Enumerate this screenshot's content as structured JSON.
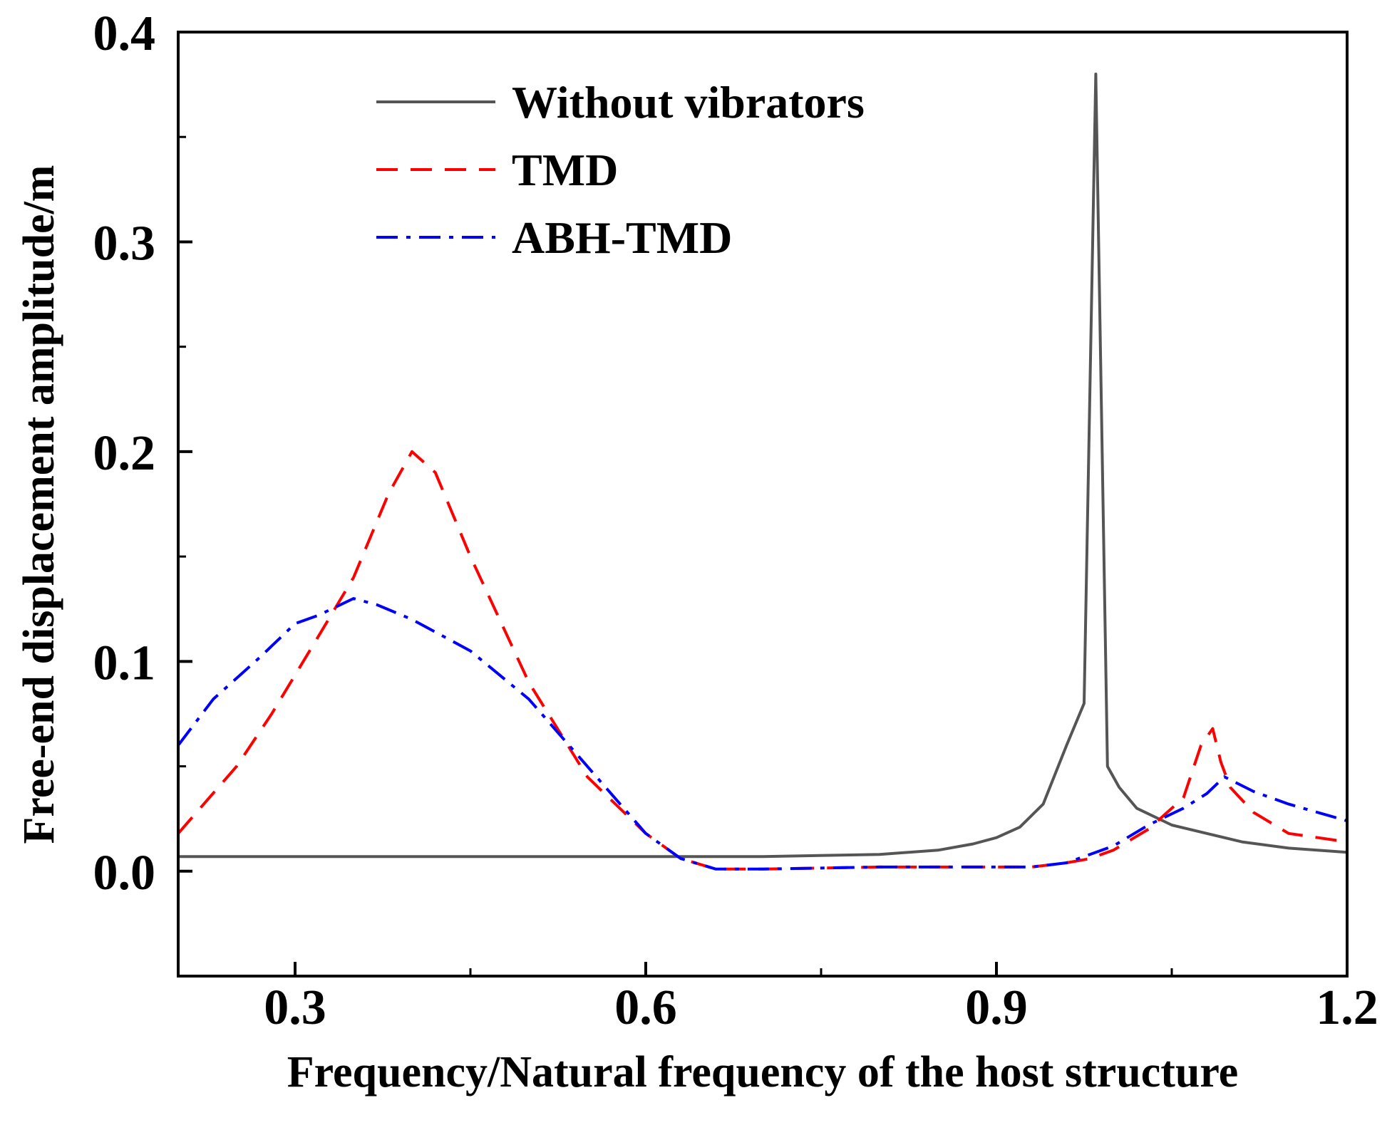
{
  "chart_data": {
    "type": "line",
    "title": "",
    "xlabel": "Frequency/Natural frequency of the host structure",
    "ylabel": "Free-end displacement amplitude/m",
    "xlim": [
      0.2,
      1.2
    ],
    "ylim": [
      -0.05,
      0.4
    ],
    "xticks": [
      0.3,
      0.6,
      0.9,
      1.2
    ],
    "xtick_labels": [
      "0.3",
      "0.6",
      "0.9",
      "1.2"
    ],
    "xminor": [
      0.45,
      0.75,
      1.05
    ],
    "yticks": [
      0.0,
      0.1,
      0.2,
      0.3,
      0.4
    ],
    "ytick_labels": [
      "0.0",
      "0.1",
      "0.2",
      "0.3",
      "0.4"
    ],
    "yminor": [
      0.05,
      0.15,
      0.25,
      0.35
    ],
    "grid": false,
    "legend_position": "top-center",
    "series": [
      {
        "name": "Without vibrators",
        "color": "#555555",
        "dash": "solid",
        "points": [
          [
            0.2,
            0.007
          ],
          [
            0.3,
            0.007
          ],
          [
            0.4,
            0.007
          ],
          [
            0.5,
            0.007
          ],
          [
            0.6,
            0.007
          ],
          [
            0.7,
            0.007
          ],
          [
            0.8,
            0.008
          ],
          [
            0.85,
            0.01
          ],
          [
            0.88,
            0.013
          ],
          [
            0.9,
            0.016
          ],
          [
            0.92,
            0.021
          ],
          [
            0.94,
            0.032
          ],
          [
            0.96,
            0.06
          ],
          [
            0.975,
            0.08
          ],
          [
            0.985,
            0.38
          ],
          [
            0.995,
            0.05
          ],
          [
            1.005,
            0.04
          ],
          [
            1.02,
            0.03
          ],
          [
            1.05,
            0.022
          ],
          [
            1.08,
            0.018
          ],
          [
            1.11,
            0.014
          ],
          [
            1.15,
            0.011
          ],
          [
            1.2,
            0.009
          ]
        ]
      },
      {
        "name": "TMD",
        "color": "#ff0000",
        "dash": "30,18",
        "points": [
          [
            0.2,
            0.018
          ],
          [
            0.25,
            0.05
          ],
          [
            0.28,
            0.075
          ],
          [
            0.32,
            0.112
          ],
          [
            0.35,
            0.14
          ],
          [
            0.38,
            0.18
          ],
          [
            0.4,
            0.2
          ],
          [
            0.42,
            0.19
          ],
          [
            0.45,
            0.15
          ],
          [
            0.5,
            0.09
          ],
          [
            0.55,
            0.045
          ],
          [
            0.6,
            0.018
          ],
          [
            0.63,
            0.006
          ],
          [
            0.66,
            0.001
          ],
          [
            0.7,
            0.001
          ],
          [
            0.8,
            0.002
          ],
          [
            0.9,
            0.002
          ],
          [
            0.93,
            0.002
          ],
          [
            0.96,
            0.004
          ],
          [
            0.98,
            0.006
          ],
          [
            1.0,
            0.01
          ],
          [
            1.03,
            0.02
          ],
          [
            1.06,
            0.035
          ],
          [
            1.075,
            0.06
          ],
          [
            1.085,
            0.068
          ],
          [
            1.092,
            0.052
          ],
          [
            1.1,
            0.04
          ],
          [
            1.12,
            0.028
          ],
          [
            1.15,
            0.018
          ],
          [
            1.2,
            0.014
          ]
        ]
      },
      {
        "name": "ABH-TMD",
        "color": "#0000ff",
        "dash": "30,12,6,12",
        "points": [
          [
            0.2,
            0.06
          ],
          [
            0.23,
            0.082
          ],
          [
            0.27,
            0.102
          ],
          [
            0.3,
            0.118
          ],
          [
            0.32,
            0.122
          ],
          [
            0.35,
            0.13
          ],
          [
            0.37,
            0.127
          ],
          [
            0.4,
            0.12
          ],
          [
            0.45,
            0.105
          ],
          [
            0.5,
            0.082
          ],
          [
            0.55,
            0.05
          ],
          [
            0.6,
            0.018
          ],
          [
            0.63,
            0.006
          ],
          [
            0.66,
            0.001
          ],
          [
            0.7,
            0.001
          ],
          [
            0.8,
            0.002
          ],
          [
            0.9,
            0.002
          ],
          [
            0.93,
            0.002
          ],
          [
            0.96,
            0.004
          ],
          [
            0.98,
            0.008
          ],
          [
            1.0,
            0.012
          ],
          [
            1.03,
            0.022
          ],
          [
            1.06,
            0.03
          ],
          [
            1.08,
            0.037
          ],
          [
            1.095,
            0.045
          ],
          [
            1.12,
            0.038
          ],
          [
            1.15,
            0.032
          ],
          [
            1.2,
            0.024
          ]
        ]
      }
    ]
  }
}
